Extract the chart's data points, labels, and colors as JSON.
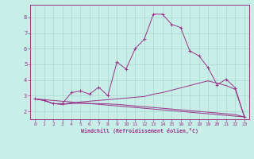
{
  "bg_color": "#c8eee8",
  "grid_color": "#a8d8d0",
  "line_color": "#993388",
  "marker": "+",
  "xlabel": "Windchill (Refroidissement éolien,°C)",
  "xlim": [
    -0.5,
    23.5
  ],
  "ylim": [
    1.5,
    8.8
  ],
  "xticks": [
    0,
    1,
    2,
    3,
    4,
    5,
    6,
    7,
    8,
    9,
    10,
    11,
    12,
    13,
    14,
    15,
    16,
    17,
    18,
    19,
    20,
    21,
    22,
    23
  ],
  "yticks": [
    2,
    3,
    4,
    5,
    6,
    7,
    8
  ],
  "line1_x": [
    0,
    1,
    2,
    3,
    4,
    5,
    6,
    7,
    8,
    9,
    10,
    11,
    12,
    13,
    14,
    15,
    16,
    17,
    18,
    19,
    20,
    21,
    22,
    23
  ],
  "line1_y": [
    2.8,
    2.7,
    2.5,
    2.5,
    3.2,
    3.3,
    3.1,
    3.55,
    3.0,
    5.15,
    4.7,
    6.0,
    6.6,
    8.2,
    8.2,
    7.55,
    7.35,
    5.85,
    5.55,
    4.8,
    3.7,
    4.05,
    3.5,
    1.65
  ],
  "line2_x": [
    0,
    1,
    2,
    3,
    4,
    5,
    6,
    7,
    8,
    9,
    10,
    11,
    12,
    13,
    14,
    15,
    16,
    17,
    18,
    19,
    20,
    21,
    22,
    23
  ],
  "line2_y": [
    2.8,
    2.7,
    2.5,
    2.45,
    2.55,
    2.6,
    2.65,
    2.7,
    2.75,
    2.8,
    2.85,
    2.9,
    2.95,
    3.1,
    3.2,
    3.35,
    3.5,
    3.65,
    3.8,
    3.95,
    3.8,
    3.65,
    3.4,
    1.65
  ],
  "line3_x": [
    0,
    1,
    2,
    3,
    4,
    5,
    6,
    7,
    8,
    9,
    10,
    11,
    12,
    13,
    14,
    15,
    16,
    17,
    18,
    19,
    20,
    21,
    22,
    23
  ],
  "line3_y": [
    2.8,
    2.7,
    2.5,
    2.45,
    2.5,
    2.52,
    2.5,
    2.5,
    2.48,
    2.45,
    2.4,
    2.35,
    2.3,
    2.25,
    2.2,
    2.15,
    2.1,
    2.05,
    2.0,
    1.95,
    1.9,
    1.85,
    1.8,
    1.65
  ],
  "line4_x": [
    0,
    23
  ],
  "line4_y": [
    2.8,
    1.65
  ]
}
